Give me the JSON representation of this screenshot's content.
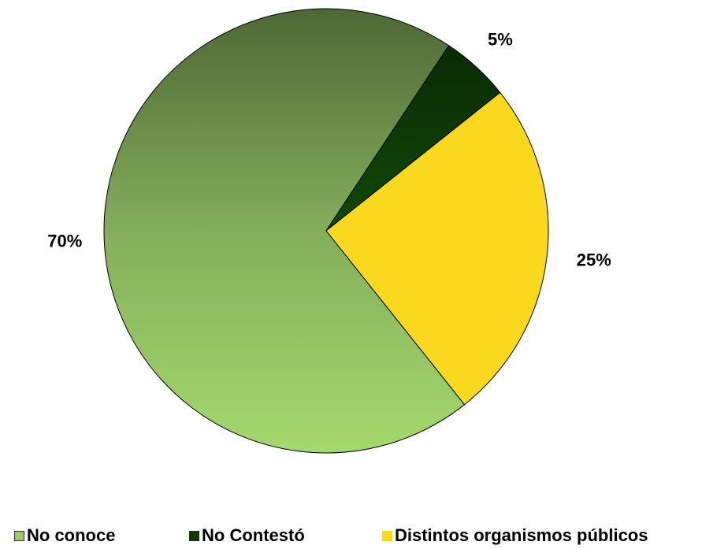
{
  "chart_data": {
    "type": "pie",
    "title": "",
    "categories": [
      "No conoce",
      "No Contestó",
      "Distintos organismos públicos"
    ],
    "values": [
      70,
      5,
      25
    ],
    "labels": [
      "70%",
      "5%",
      "25%"
    ],
    "colors": [
      "#8DB85A",
      "#0F3A05",
      "#FAD81E"
    ],
    "legend_position": "bottom"
  }
}
